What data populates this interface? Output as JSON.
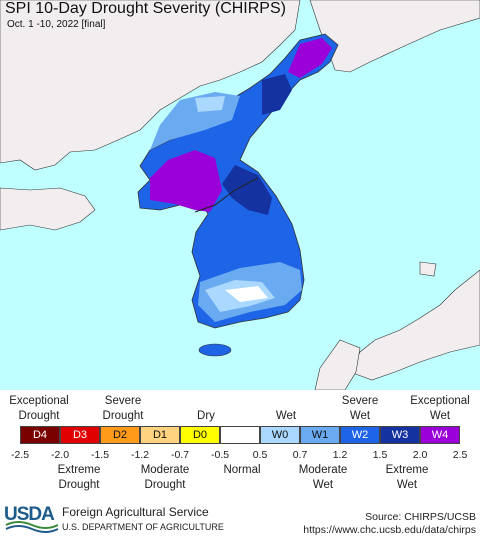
{
  "header": {
    "title": "SPI 10-Day Drought Severity (CHIRPS)",
    "subtitle": "Oct. 1 -10, 2022 [final]"
  },
  "legend": {
    "top_labels": [
      "Exceptional\nDrought",
      "Severe\nDrought",
      "Dry",
      "Wet",
      "Severe\nWet",
      "Exceptional\nWet"
    ],
    "bottom_labels": [
      "Extreme\nDrought",
      "Moderate\nDrought",
      "Normal",
      "Moderate\nWet",
      "Extreme\nWet"
    ],
    "classes": [
      {
        "code": "D4",
        "color": "#7a0000"
      },
      {
        "code": "D3",
        "color": "#e00000"
      },
      {
        "code": "D2",
        "color": "#ff9a1a"
      },
      {
        "code": "D1",
        "color": "#ffd37f"
      },
      {
        "code": "D0",
        "color": "#ffff00"
      },
      {
        "code": "",
        "color": "#ffffff"
      },
      {
        "code": "W0",
        "color": "#aad8ff"
      },
      {
        "code": "W1",
        "color": "#6aaaf0"
      },
      {
        "code": "W2",
        "color": "#1e64e6"
      },
      {
        "code": "W3",
        "color": "#1432a0"
      },
      {
        "code": "W4",
        "color": "#9b00d9"
      }
    ],
    "ticks": [
      "-2.5",
      "-2.0",
      "-1.5",
      "-1.2",
      "-0.7",
      "-0.5",
      "0.5",
      "0.7",
      "1.2",
      "1.5",
      "2.0",
      "2.5"
    ]
  },
  "footer": {
    "logo_text": "USDA",
    "agency": "Foreign Agricultural Service",
    "department": "U.S. DEPARTMENT OF AGRICULTURE",
    "source": "Source: CHIRPS/UCSB",
    "url": "https://www.chc.ucsb.edu/data/chirps"
  },
  "colors": {
    "ocean": "#bfffff",
    "land_outside": "#f2eef0"
  }
}
